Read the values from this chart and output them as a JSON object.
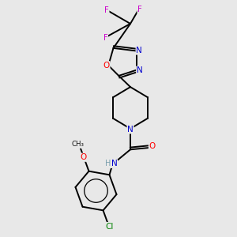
{
  "bg_color": "#e8e8e8",
  "bond_color": "#000000",
  "atom_colors": {
    "N": "#0000cd",
    "O": "#ff0000",
    "F": "#cc00cc",
    "Cl": "#008000",
    "H": "#7a9fad",
    "C": "#000000"
  },
  "figsize": [
    3.0,
    3.0
  ],
  "dpi": 100,
  "lw": 1.4
}
